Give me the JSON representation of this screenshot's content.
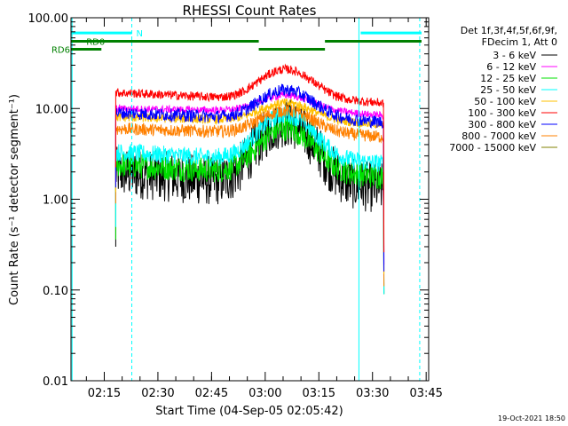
{
  "chart_data": {
    "type": "line",
    "title": "RHESSI Count Rates",
    "xlabel": "Start Time (04-Sep-05 02:05:42)",
    "ylabel": "Count Rate (s⁻¹ detector segment⁻¹)",
    "yscale": "log",
    "ylim": [
      0.01,
      100
    ],
    "xlim_minutes": [
      0,
      100
    ],
    "y_ticks": [
      "0.01",
      "0.10",
      "1.00",
      "10.00",
      "100.00"
    ],
    "x_ticks": [
      {
        "label": "02:15",
        "min": 9.3
      },
      {
        "label": "02:30",
        "min": 24.3
      },
      {
        "label": "02:45",
        "min": 39.3
      },
      {
        "label": "03:00",
        "min": 54.3
      },
      {
        "label": "03:15",
        "min": 69.3
      },
      {
        "label": "03:30",
        "min": 84.3
      },
      {
        "label": "03:45",
        "min": 99.3
      }
    ],
    "legend_header": [
      "Det 1f,3f,4f,5f,6f,9f,",
      "FDecim 1, Att 0"
    ],
    "series": [
      {
        "name": "3 - 6 keV",
        "color": "#000000",
        "start": 2.0,
        "peak": 7.0,
        "noise": 0.28,
        "dip": 1.5
      },
      {
        "name": "6 - 12 keV",
        "color": "#ff00ff",
        "start": 10.0,
        "peak": 14.0,
        "noise": 0.04,
        "dip": 9.5
      },
      {
        "name": "12 - 25 keV",
        "color": "#00e000",
        "start": 2.4,
        "peak": 6.0,
        "noise": 0.14,
        "dip": 2.0
      },
      {
        "name": "25 - 50 keV",
        "color": "#00ffff",
        "start": 3.3,
        "peak": 8.5,
        "noise": 0.1,
        "dip": 2.8
      },
      {
        "name": "50 - 100 keV",
        "color": "#ffc000",
        "start": 8.0,
        "peak": 11.5,
        "noise": 0.05,
        "dip": 7.5
      },
      {
        "name": "100 - 300 keV",
        "color": "#ff0000",
        "start": 15.0,
        "peak": 27.0,
        "noise": 0.05,
        "dip": 13.0
      },
      {
        "name": "300 - 800 keV",
        "color": "#0000ff",
        "start": 9.0,
        "peak": 16.0,
        "noise": 0.07,
        "dip": 8.0
      },
      {
        "name": "800 - 7000 keV",
        "color": "#ff8000",
        "start": 6.0,
        "peak": 9.5,
        "noise": 0.07,
        "dip": 5.5
      },
      {
        "name": "7000 - 15000 keV",
        "color": "#808000",
        "start": 0.0,
        "peak": 0.0,
        "noise": 0.0,
        "dip": 0.0
      }
    ],
    "data_window_minutes": [
      12.5,
      87.5
    ],
    "flare_peak_minute": 60,
    "bars": [
      {
        "label": "N",
        "color": "#00ffff",
        "level": 68,
        "segments": [
          [
            0,
            17
          ],
          [
            81,
            98
          ]
        ]
      },
      {
        "label": "RD0",
        "color": "#008000",
        "level": 55,
        "segments": [
          [
            0,
            52.5
          ],
          [
            71,
            98
          ]
        ]
      },
      {
        "label": "RD6",
        "color": "#008000",
        "level": 45,
        "segments": [
          [
            0,
            8.5
          ],
          [
            52.5,
            71
          ]
        ]
      }
    ],
    "vlines": [
      {
        "minute": 17,
        "color": "#00ffff",
        "style": "dashed"
      },
      {
        "minute": 80.5,
        "color": "#00ffff",
        "style": "solid"
      },
      {
        "minute": 97.5,
        "color": "#00ffff",
        "style": "dashed"
      },
      {
        "minute": 0.3,
        "color": "#00ffff",
        "style": "solid"
      }
    ],
    "footer": "19-Oct-2021 18:50"
  }
}
